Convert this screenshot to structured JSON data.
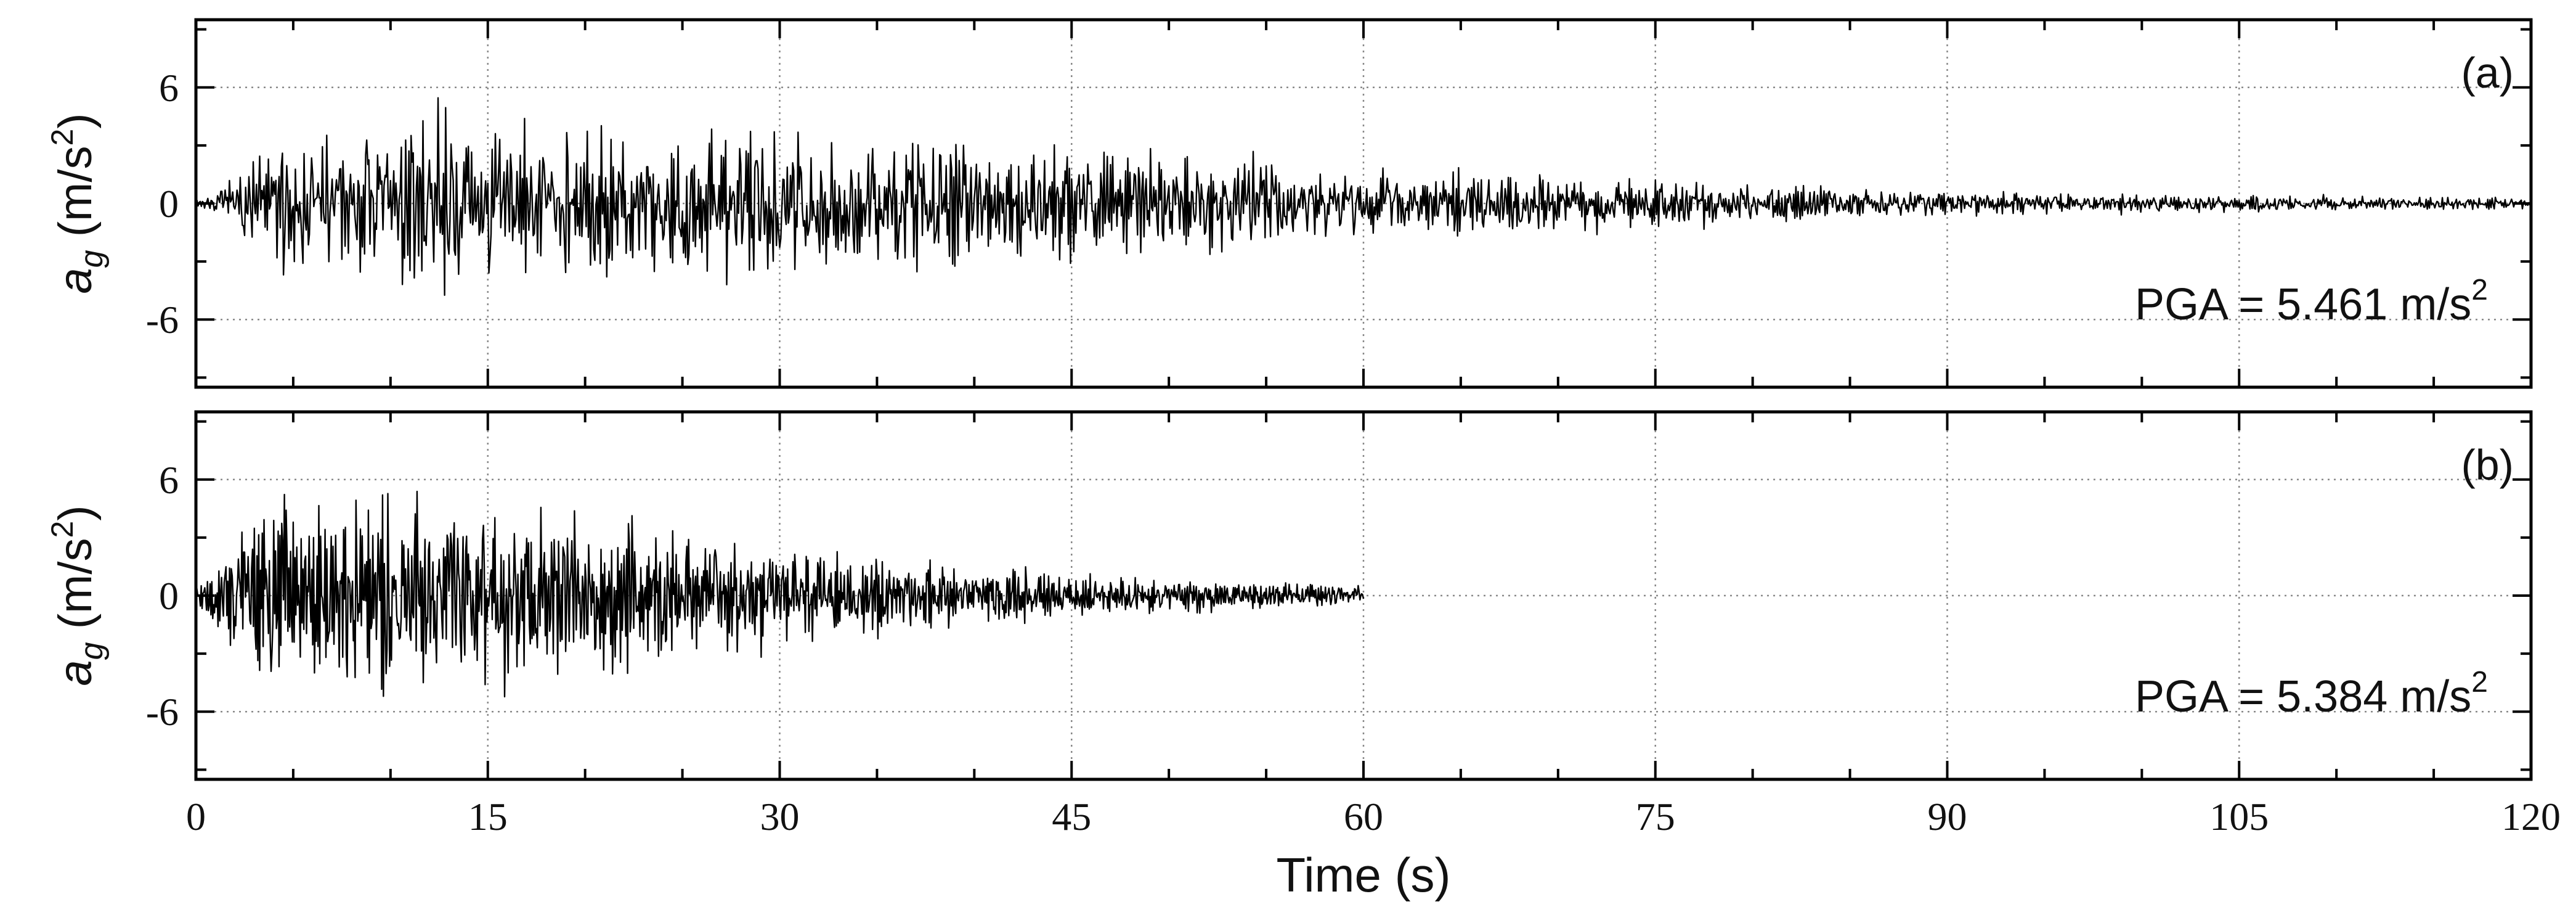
{
  "chart_data": [
    {
      "type": "line",
      "panel_label": "(a)",
      "annotation": {
        "prefix": "PGA = ",
        "value": "5.461",
        "unit": " m/s",
        "sup": "2"
      },
      "ylabel": {
        "main": "a",
        "sub": "g",
        "unit": " (m/s",
        "sup": "2",
        "close": ")"
      },
      "xlabel": "",
      "xlim": [
        0,
        120
      ],
      "ylim": [
        -9.5,
        9.5
      ],
      "yticks": [
        -6,
        0,
        6
      ],
      "xticks": [
        0,
        15,
        30,
        45,
        60,
        75,
        90,
        105,
        120
      ],
      "grid": true,
      "duration_s": 120,
      "pga": 5.461,
      "envelope": {
        "t": [
          0,
          1,
          2,
          3,
          5,
          8,
          13,
          20,
          28,
          35,
          42,
          47,
          52,
          57,
          62,
          68,
          74,
          76,
          80,
          88,
          96,
          104,
          112,
          120
        ],
        "amp": [
          0.25,
          0.4,
          1.2,
          2.3,
          3.0,
          3.2,
          3.6,
          3.5,
          3.3,
          3.0,
          2.6,
          2.4,
          2.0,
          1.7,
          1.45,
          1.25,
          1.05,
          1.1,
          0.85,
          0.6,
          0.45,
          0.38,
          0.3,
          0.22
        ]
      },
      "signal": {
        "seed": 7,
        "points_per_second": 18
      }
    },
    {
      "type": "line",
      "panel_label": "(b)",
      "annotation": {
        "prefix": "PGA = ",
        "value": "5.384",
        "unit": " m/s",
        "sup": "2"
      },
      "ylabel": {
        "main": "a",
        "sub": "g",
        "unit": " (m/s",
        "sup": "2",
        "close": ")"
      },
      "xlabel": "Time (s)",
      "xlim": [
        0,
        120
      ],
      "ylim": [
        -9.5,
        9.5
      ],
      "yticks": [
        -6,
        0,
        6
      ],
      "xticks": [
        0,
        15,
        30,
        45,
        60,
        75,
        90,
        105,
        120
      ],
      "grid": true,
      "duration_s": 60,
      "pga": 5.384,
      "envelope": {
        "t": [
          0,
          1,
          2,
          4,
          7,
          12,
          17,
          22,
          27,
          32,
          37,
          42,
          47,
          52,
          56,
          60
        ],
        "amp": [
          0.25,
          1.0,
          2.3,
          3.2,
          3.5,
          3.4,
          3.2,
          2.6,
          2.1,
          1.6,
          1.2,
          0.95,
          0.7,
          0.55,
          0.45,
          0.35
        ]
      },
      "signal": {
        "seed": 19,
        "points_per_second": 22
      }
    }
  ]
}
